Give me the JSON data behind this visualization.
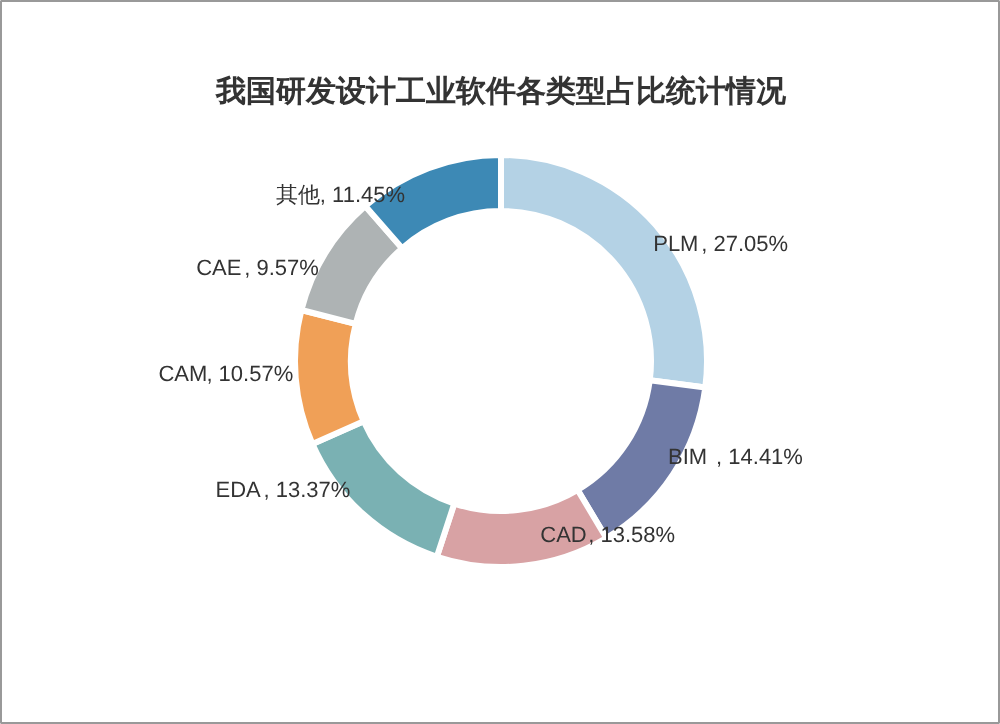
{
  "chart_data": {
    "type": "donut",
    "title": "我国研发设计工业软件各类型占比统计情况",
    "categories": [
      "PLM",
      "BIM",
      "CAD",
      "EDA",
      "CAM",
      "CAE",
      "其他"
    ],
    "values": [
      27.05,
      14.41,
      13.58,
      13.37,
      10.57,
      9.57,
      11.45
    ],
    "colors": [
      "#b4d2e5",
      "#6f7ba6",
      "#d8a2a4",
      "#7ab1b3",
      "#f0a057",
      "#aeb3b4",
      "#3d89b5"
    ],
    "value_labels": [
      ", 27.05%",
      ", 14.41%",
      ", 13.58%",
      ", 13.37%",
      ", 10.57%",
      ", 9.57%",
      ", 11.45%"
    ]
  }
}
